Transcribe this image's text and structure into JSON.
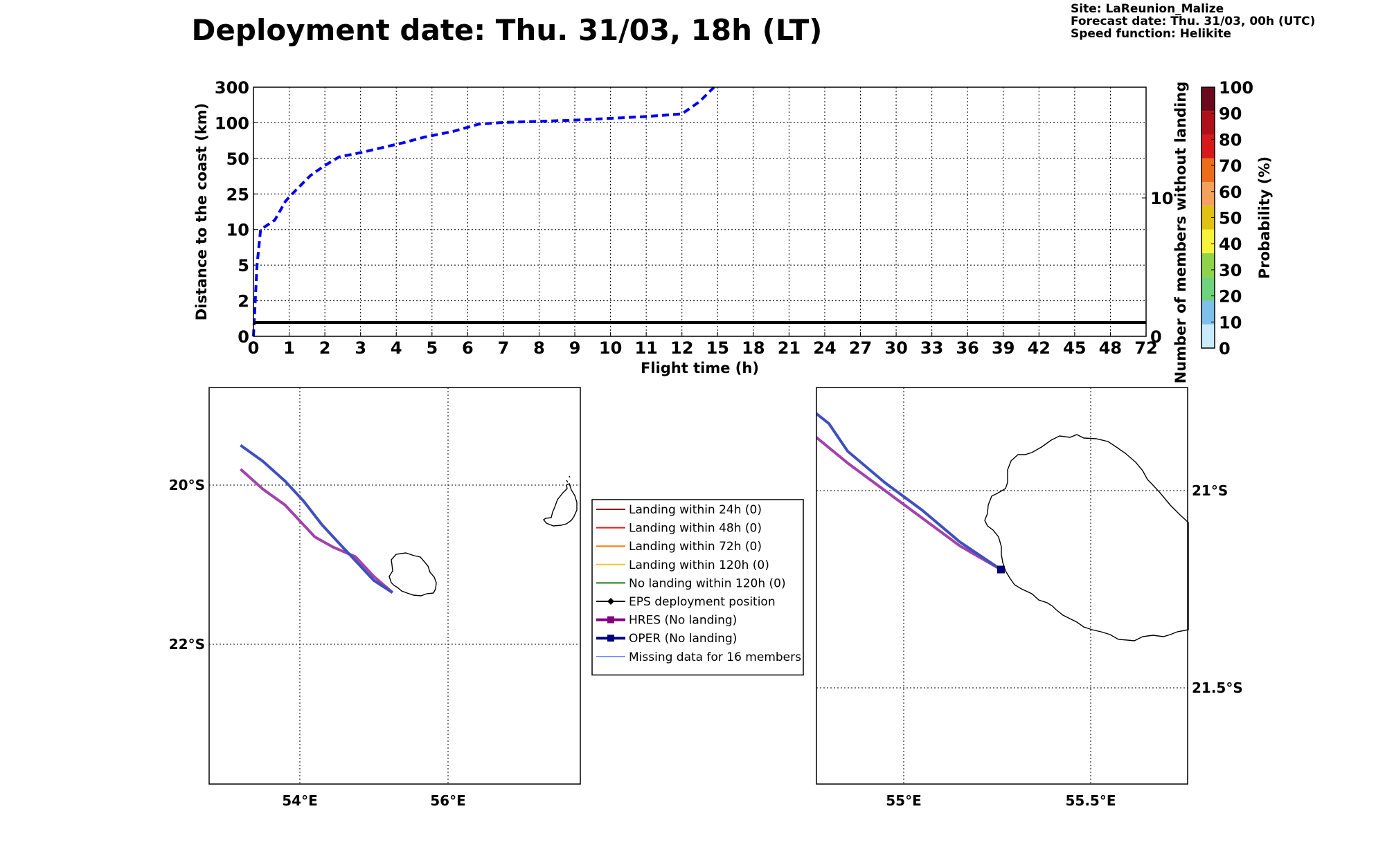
{
  "header": {
    "title": "Deployment date: Thu. 31/03, 18h (LT)",
    "site": "Site: LaReunion_Malize",
    "forecast": "Forecast date: Thu. 31/03, 00h (UTC)",
    "speed": "Speed function: Helikite"
  },
  "chart_data": [
    {
      "type": "line",
      "xlabel": "Flight time (h)",
      "ylabel": "Distance to the coast (km)",
      "ylabel_right": "Number of members without landing",
      "x_ticks": [
        "0",
        "1",
        "2",
        "3",
        "4",
        "5",
        "6",
        "7",
        "8",
        "9",
        "10",
        "11",
        "12",
        "15",
        "18",
        "21",
        "24",
        "27",
        "30",
        "33",
        "36",
        "39",
        "42",
        "45",
        "48",
        "72"
      ],
      "y_ticks": [
        "0",
        "2",
        "5",
        "10",
        "25",
        "50",
        "100",
        "300"
      ],
      "y_right_ticks": [
        "0",
        "10"
      ],
      "grid": true,
      "series": [
        {
          "color": "#0000ee",
          "style": "dashed",
          "points": [
            [
              0,
              0
            ],
            [
              0.05,
              2
            ],
            [
              0.1,
              5
            ],
            [
              0.2,
              10
            ],
            [
              0.4,
              12
            ],
            [
              0.6,
              14
            ],
            [
              0.9,
              22
            ],
            [
              1.2,
              28
            ],
            [
              1.6,
              38
            ],
            [
              2.0,
              45
            ],
            [
              2.4,
              52
            ],
            [
              3.0,
              58
            ],
            [
              3.6,
              65
            ],
            [
              4.2,
              72
            ],
            [
              4.8,
              80
            ],
            [
              5.6,
              88
            ],
            [
              6.3,
              98
            ],
            [
              7.0,
              102
            ],
            [
              8.0,
              108
            ],
            [
              9.0,
              115
            ],
            [
              10.0,
              125
            ],
            [
              11.0,
              135
            ],
            [
              12.0,
              150
            ],
            [
              13.5,
              220
            ],
            [
              14.7,
              300
            ]
          ]
        },
        {
          "color": "#000000",
          "style": "solid",
          "axis": "right",
          "x": [
            0,
            72
          ],
          "y": [
            1,
            1
          ]
        }
      ]
    },
    {
      "type": "heatmap",
      "ylabel": "Probability (%)",
      "ticks": [
        "0",
        "10",
        "20",
        "30",
        "40",
        "50",
        "60",
        "70",
        "80",
        "90",
        "100"
      ],
      "colors": [
        "#c8ecfb",
        "#7ec0ea",
        "#6fd27c",
        "#8fd34b",
        "#f6f33a",
        "#e1c213",
        "#f3a15c",
        "#ed6c1a",
        "#d7191c",
        "#b0101a",
        "#6b0a1c"
      ]
    },
    {
      "type": "line",
      "lon_ticks": [
        "54°E",
        "56°E"
      ],
      "lat_ticks": [
        "20°S",
        "22°S"
      ],
      "series": [
        {
          "name": "OPER (No landing)",
          "color": "#3f50bd",
          "points": [
            [
              53.2,
              -19.5
            ],
            [
              53.5,
              -19.7
            ],
            [
              53.8,
              -19.95
            ],
            [
              54.05,
              -20.2
            ],
            [
              54.3,
              -20.5
            ],
            [
              54.55,
              -20.75
            ],
            [
              54.8,
              -21.0
            ],
            [
              55.0,
              -21.2
            ],
            [
              55.25,
              -21.35
            ]
          ]
        },
        {
          "name": "HRES (No landing)",
          "color": "#a243ac",
          "points": [
            [
              53.2,
              -19.8
            ],
            [
              53.5,
              -20.05
            ],
            [
              53.8,
              -20.25
            ],
            [
              54.0,
              -20.45
            ],
            [
              54.2,
              -20.65
            ],
            [
              54.45,
              -20.78
            ],
            [
              54.75,
              -20.9
            ],
            [
              55.0,
              -21.15
            ],
            [
              55.25,
              -21.35
            ]
          ]
        }
      ]
    },
    {
      "type": "line",
      "lon_ticks": [
        "55°E",
        "55.5°E"
      ],
      "lat_ticks": [
        "21°S",
        "21.5°S"
      ],
      "series": [
        {
          "name": "OPER (No landing)",
          "color": "#3f50bd",
          "points": [
            [
              54.76,
              -20.8
            ],
            [
              54.8,
              -20.83
            ],
            [
              54.85,
              -20.9
            ],
            [
              54.95,
              -20.98
            ],
            [
              55.05,
              -21.05
            ],
            [
              55.15,
              -21.13
            ],
            [
              55.26,
              -21.2
            ]
          ]
        },
        {
          "name": "HRES (No landing)",
          "color": "#a243ac",
          "points": [
            [
              54.76,
              -20.86
            ],
            [
              54.85,
              -20.93
            ],
            [
              54.95,
              -21.0
            ],
            [
              55.05,
              -21.07
            ],
            [
              55.15,
              -21.14
            ],
            [
              55.26,
              -21.2
            ]
          ]
        }
      ]
    }
  ],
  "legend": {
    "items": [
      {
        "label": "Landing within 24h (0)",
        "color": "#8b1a1a",
        "marker": "none",
        "width": 2
      },
      {
        "label": "Landing within 48h (0)",
        "color": "#e31a1c",
        "marker": "none",
        "width": 2
      },
      {
        "label": "Landing within 72h (0)",
        "color": "#ff7f0e",
        "marker": "none",
        "width": 2
      },
      {
        "label": "Landing within 120h (0)",
        "color": "#f2c72b",
        "marker": "none",
        "width": 2
      },
      {
        "label": "No landing within 120h (0)",
        "color": "#1a7a1a",
        "marker": "none",
        "width": 2
      },
      {
        "label": "EPS deployment position",
        "color": "#000000",
        "marker": "diamond",
        "width": 2
      },
      {
        "label": "HRES (No landing)",
        "color": "#800080",
        "marker": "square",
        "width": 4
      },
      {
        "label": "OPER (No landing)",
        "color": "#000080",
        "marker": "square",
        "width": 4
      },
      {
        "label": "Missing data for 16 members",
        "color": "#3c5cff",
        "marker": "none",
        "width": 1
      }
    ]
  }
}
